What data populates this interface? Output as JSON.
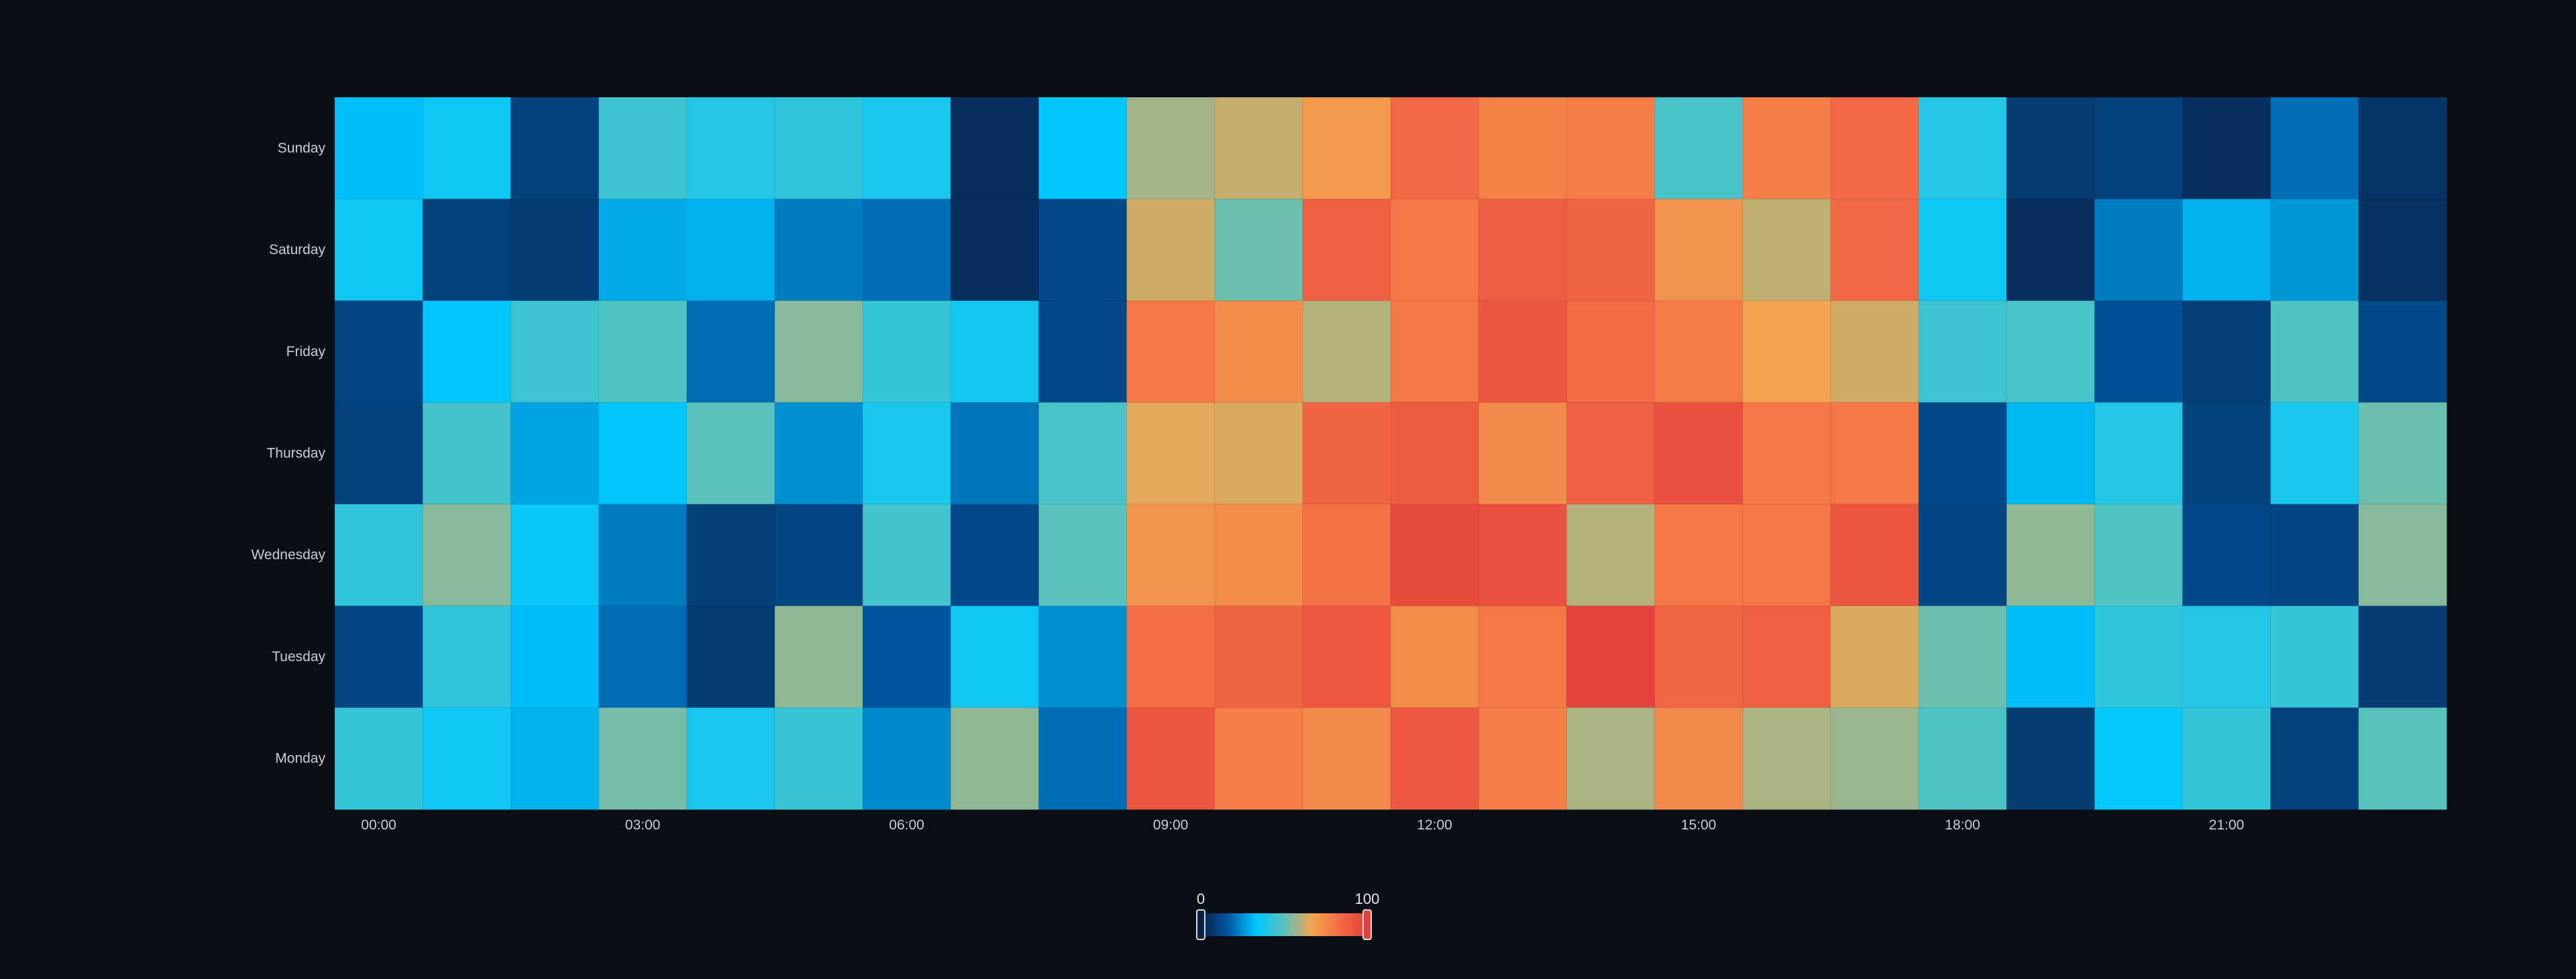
{
  "chart_data": {
    "type": "heatmap",
    "title": "",
    "xlabel": "",
    "ylabel": "",
    "x_hours": [
      "00:00",
      "01:00",
      "02:00",
      "03:00",
      "04:00",
      "05:00",
      "06:00",
      "07:00",
      "08:00",
      "09:00",
      "10:00",
      "11:00",
      "12:00",
      "13:00",
      "14:00",
      "15:00",
      "16:00",
      "17:00",
      "18:00",
      "19:00",
      "20:00",
      "21:00",
      "22:00",
      "23:00"
    ],
    "x_tick_labels": [
      "00:00",
      "03:00",
      "06:00",
      "09:00",
      "12:00",
      "15:00",
      "18:00",
      "21:00"
    ],
    "y_days": [
      "Sunday",
      "Saturday",
      "Friday",
      "Thursday",
      "Wednesday",
      "Tuesday",
      "Monday"
    ],
    "values": [
      [
        32,
        36,
        10,
        45,
        40,
        42,
        38,
        4,
        33,
        58,
        62,
        70,
        85,
        77,
        79,
        47,
        78,
        85,
        40,
        8,
        10,
        4,
        20,
        6
      ],
      [
        36,
        10,
        8,
        29,
        30,
        22,
        20,
        4,
        12,
        63,
        52,
        88,
        80,
        89,
        87,
        72,
        61,
        85,
        36,
        4,
        22,
        30,
        26,
        5
      ],
      [
        11,
        33,
        45,
        48,
        20,
        55,
        43,
        37,
        12,
        80,
        74,
        60,
        80,
        92,
        84,
        79,
        67,
        63,
        45,
        47,
        14,
        9,
        48,
        12
      ],
      [
        10,
        46,
        28,
        33,
        50,
        25,
        38,
        21,
        47,
        65,
        64,
        87,
        90,
        75,
        88,
        94,
        80,
        80,
        12,
        31,
        40,
        10,
        38,
        52
      ],
      [
        42,
        55,
        35,
        22,
        9,
        11,
        46,
        12,
        50,
        72,
        74,
        82,
        96,
        94,
        60,
        80,
        80,
        92,
        11,
        56,
        48,
        12,
        11,
        55
      ],
      [
        11,
        42,
        32,
        20,
        8,
        56,
        16,
        36,
        25,
        83,
        87,
        91,
        74,
        80,
        99,
        86,
        88,
        64,
        52,
        32,
        42,
        40,
        43,
        8
      ],
      [
        43,
        36,
        30,
        53,
        38,
        44,
        24,
        56,
        20,
        92,
        78,
        75,
        91,
        78,
        59,
        75,
        59,
        57,
        48,
        8,
        34,
        43,
        10,
        50
      ]
    ],
    "visual_map": {
      "min": 0,
      "max": 100,
      "min_label": "0",
      "max_label": "100",
      "colors": [
        "#0b2146",
        "#0058a4",
        "#00c8ff",
        "#59c2bc",
        "#f2a54e",
        "#f46c45",
        "#e3413c"
      ]
    }
  }
}
